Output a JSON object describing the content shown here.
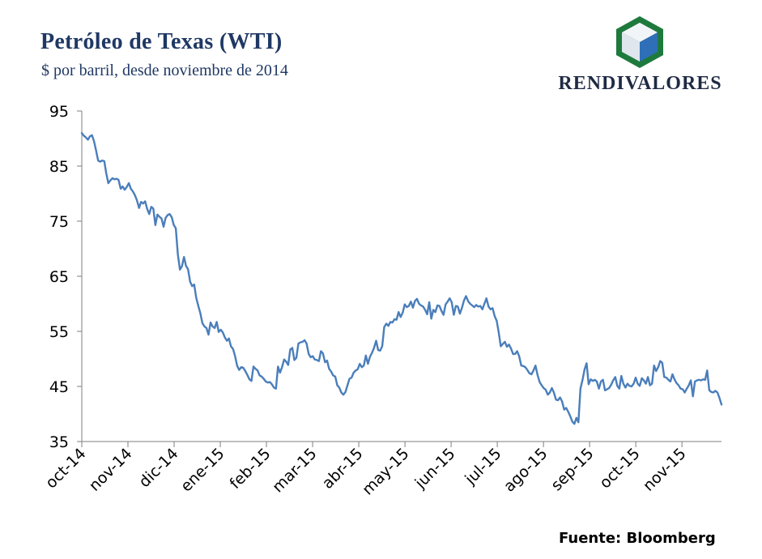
{
  "header": {
    "title": "Petróleo de Texas (WTI)",
    "subtitle": "$ por barril, desde noviembre de 2014"
  },
  "logo": {
    "text": "RENDIVALORES",
    "icon": "cube-logo-icon",
    "colors": {
      "green": "#1e7a3c",
      "blue": "#2f6fb7",
      "light": "#e8eef5"
    }
  },
  "source": "Fuente: Bloomberg",
  "colors": {
    "line": "#4a7ebb",
    "axis": "#7f7f7f",
    "text": "#000000"
  },
  "chart_data": {
    "type": "line",
    "title": "Petróleo de Texas (WTI)",
    "subtitle": "$ por barril, desde noviembre de 2014",
    "xlabel": "",
    "ylabel": "",
    "ylim": [
      35,
      95
    ],
    "yticks": [
      35,
      45,
      55,
      65,
      75,
      85,
      95
    ],
    "xticks": [
      "oct-14",
      "nov-14",
      "dic-14",
      "ene-15",
      "feb-15",
      "mar-15",
      "abr-15",
      "may-15",
      "jun-15",
      "jul-15",
      "ago-15",
      "sep-15",
      "oct-15",
      "nov-15"
    ],
    "grid": false,
    "legend": "none",
    "series": [
      {
        "values": [
          91.0,
          90.5,
          90.2,
          89.8,
          90.4,
          90.6,
          89.5,
          87.8,
          86.0,
          85.8,
          86.0,
          85.9,
          83.6,
          81.9,
          82.4,
          82.8,
          82.6,
          82.7,
          82.5,
          80.9,
          81.3,
          80.7,
          81.2,
          81.9,
          80.9,
          80.4,
          79.7,
          78.8,
          77.4,
          78.5,
          78.2,
          78.6,
          77.2,
          76.3,
          77.6,
          77.3,
          74.3,
          76.2,
          75.8,
          75.5,
          74.0,
          75.6,
          76.1,
          76.3,
          75.7,
          74.3,
          73.7,
          69.0,
          66.2,
          66.8,
          68.5,
          66.9,
          66.3,
          64.0,
          63.2,
          63.5,
          61.1,
          59.6,
          58.3,
          56.5,
          55.9,
          55.6,
          54.4,
          56.6,
          55.9,
          55.6,
          56.7,
          54.9,
          55.3,
          54.8,
          53.9,
          53.3,
          53.7,
          52.3,
          51.8,
          50.5,
          48.8,
          48.0,
          48.5,
          48.4,
          47.8,
          47.1,
          46.3,
          46.0,
          48.6,
          48.2,
          47.9,
          47.0,
          46.8,
          46.4,
          45.9,
          45.7,
          45.8,
          45.4,
          44.8,
          44.6,
          48.6,
          47.5,
          48.5,
          49.9,
          49.5,
          48.9,
          51.7,
          52.0,
          49.8,
          50.2,
          52.8,
          53.0,
          53.1,
          53.4,
          52.8,
          50.9,
          50.3,
          50.5,
          49.9,
          49.8,
          49.6,
          51.4,
          51.0,
          49.4,
          49.7,
          48.2,
          47.7,
          47.0,
          46.8,
          45.2,
          44.8,
          43.9,
          43.5,
          44.0,
          45.2,
          46.4,
          46.6,
          47.5,
          47.9,
          48.1,
          49.1,
          48.5,
          48.8,
          50.6,
          49.1,
          50.4,
          51.1,
          52.0,
          53.3,
          51.6,
          51.5,
          52.3,
          55.8,
          56.4,
          56.0,
          56.7,
          56.6,
          57.2,
          57.1,
          58.5,
          57.6,
          58.4,
          59.9,
          59.4,
          59.6,
          60.4,
          59.3,
          60.5,
          60.9,
          60.0,
          59.7,
          59.5,
          58.9,
          58.1,
          60.3,
          57.3,
          58.9,
          58.5,
          59.7,
          59.6,
          58.7,
          58.0,
          59.9,
          60.4,
          61.0,
          60.3,
          58.0,
          59.6,
          59.5,
          58.2,
          59.3,
          60.6,
          61.4,
          60.5,
          60.0,
          59.7,
          59.4,
          59.8,
          59.5,
          59.6,
          59.0,
          60.0,
          61.0,
          59.5,
          59.0,
          59.2,
          57.8,
          56.9,
          54.8,
          52.3,
          52.7,
          53.1,
          52.2,
          52.6,
          51.9,
          50.9,
          50.9,
          51.4,
          50.5,
          48.8,
          48.7,
          48.5,
          48.0,
          47.4,
          47.2,
          47.9,
          48.8,
          47.1,
          45.8,
          45.2,
          44.7,
          44.4,
          43.5,
          43.9,
          44.7,
          43.9,
          42.6,
          42.5,
          43.0,
          42.3,
          40.8,
          41.1,
          40.4,
          39.6,
          38.6,
          38.2,
          39.3,
          38.5,
          44.6,
          46.2,
          48.1,
          49.2,
          45.4,
          46.3,
          46.0,
          46.2,
          45.9,
          44.6,
          45.9,
          46.2,
          44.3,
          44.5,
          44.7,
          45.3,
          46.1,
          46.7,
          45.1,
          44.6,
          46.9,
          45.5,
          44.8,
          45.5,
          45.1,
          45.0,
          45.5,
          46.6,
          45.5,
          45.1,
          46.5,
          46.1,
          45.5,
          46.7,
          45.2,
          45.5,
          48.8,
          47.8,
          48.5,
          49.6,
          49.3,
          46.7,
          46.6,
          46.2,
          45.9,
          47.2,
          46.3,
          45.6,
          45.2,
          44.6,
          44.5,
          43.9,
          44.6,
          45.2,
          46.1,
          43.2,
          45.9,
          46.1,
          46.2,
          46.1,
          46.3,
          46.2,
          47.9,
          44.3,
          44.0,
          43.9,
          44.2,
          43.9,
          42.9,
          41.7
        ]
      }
    ]
  }
}
